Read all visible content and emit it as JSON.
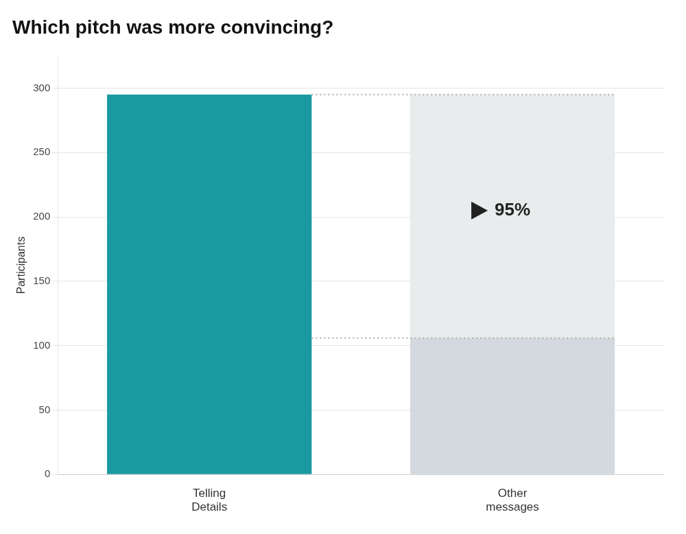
{
  "chart_data": {
    "type": "bar",
    "title": "Which pitch was more convincing?",
    "categories": [
      "Telling\nDetails",
      "Other\nmessages"
    ],
    "series": [
      {
        "values": [
          295,
          106
        ],
        "colors": [
          "#1a9aa0",
          "#d3d9de"
        ]
      },
      {
        "values": [
          null,
          189
        ],
        "color": "#e8eced"
      }
    ],
    "stacked": true,
    "ylabel": "Participants",
    "ylim": [
      0,
      325
    ],
    "yticks": [
      0,
      50,
      100,
      150,
      200,
      250,
      300
    ],
    "grid": true,
    "lines": [
      {
        "y": 295,
        "color": "#aaaaaa",
        "line_style": "dotted"
      },
      {
        "y": 106,
        "color": "#aaaaaa",
        "line_style": "dotted"
      }
    ],
    "annotations": [
      {
        "text": "95%",
        "y": 205,
        "category": "Other\nmessages",
        "marker": "triangle"
      }
    ]
  }
}
